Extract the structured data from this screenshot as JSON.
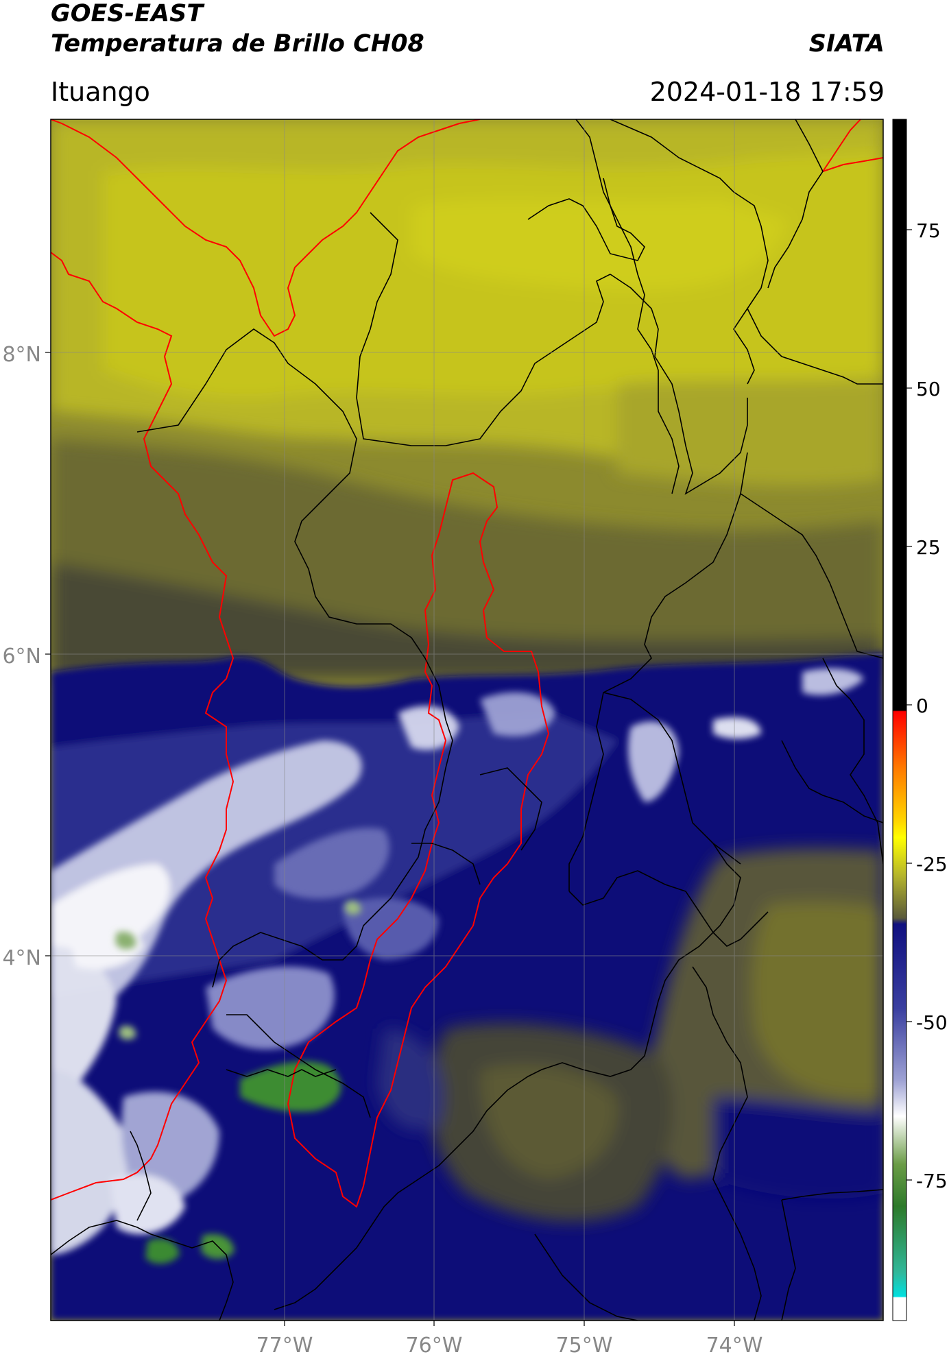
{
  "header": {
    "satellite": "GOES-EAST",
    "product": "Temperatura de Brillo CH08",
    "brand": "SIATA",
    "region": "Ituango",
    "timestamp": "2024-01-18 17:59"
  },
  "map": {
    "lat_labels": [
      "8°N",
      "6°N",
      "4°N"
    ],
    "lon_labels": [
      "77°W",
      "76°W",
      "75°W",
      "74°W"
    ],
    "colors": {
      "yellow_bright": "#c8c81c",
      "olive": "#8c8a2e",
      "dark_olive": "#55552e",
      "navy": "#0b1078",
      "light": "#e8eaf4",
      "green": "#3c8c30",
      "border_red": "#ff0000",
      "border_black": "#000000"
    }
  },
  "colorbar": {
    "ticks": [
      "75",
      "50",
      "25",
      "0",
      "-25",
      "-50",
      "-75"
    ]
  }
}
